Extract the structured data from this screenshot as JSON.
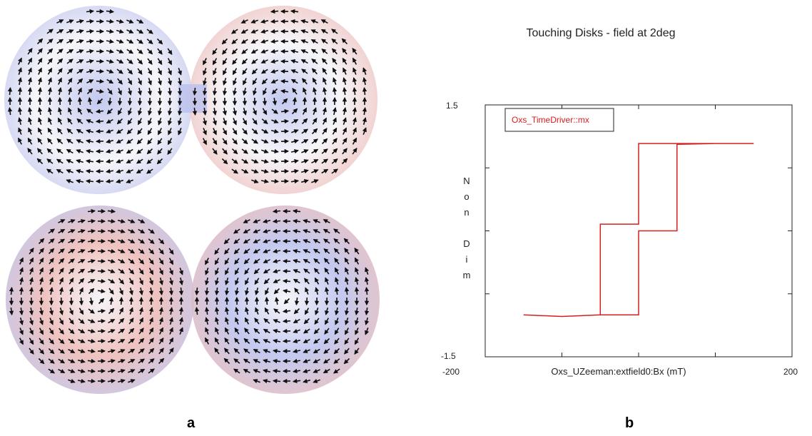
{
  "panels": {
    "a_label": "a",
    "b_label": "b"
  },
  "vector_field": {
    "description_colors": {
      "negative": "#b9c0ec",
      "positive": "#ecb8b4",
      "neutral": "#f4f4f8",
      "arrow": "#111111"
    },
    "disks": [
      {
        "id": "top-left",
        "pattern": "vortex-ccw"
      },
      {
        "id": "top-right",
        "pattern": "vortex-cw"
      },
      {
        "id": "bottom-left",
        "pattern": "onion-up"
      },
      {
        "id": "bottom-right",
        "pattern": "onion-down"
      }
    ]
  },
  "chart_data": {
    "type": "line",
    "title": "Touching Disks - field at 2deg",
    "xlabel": "Oxs_UZeeman:extfield0:Bx (mT)",
    "ylabel_chars": [
      "N",
      "o",
      "n",
      "",
      "D",
      "i",
      "m"
    ],
    "xlim": [
      -200,
      200
    ],
    "ylim": [
      -1.5,
      1.5
    ],
    "x_tick_labels": [
      "-200",
      "200"
    ],
    "y_tick_labels": [
      "1.5",
      "-1.5"
    ],
    "legend": "Oxs_TimeDriver::mx",
    "series_color": "#d42020",
    "series": [
      {
        "name": "Oxs_TimeDriver::mx",
        "points": [
          [
            -150,
            -1.0
          ],
          [
            -100,
            -1.02
          ],
          [
            -50,
            -1.0
          ],
          [
            -50,
            0.08
          ],
          [
            0,
            0.08
          ],
          [
            0,
            1.04
          ],
          [
            100,
            1.04
          ],
          [
            150,
            1.04
          ],
          [
            100,
            1.04
          ],
          [
            50,
            1.03
          ],
          [
            50,
            -0.0
          ],
          [
            0,
            0.0
          ],
          [
            0,
            -1.0
          ],
          [
            -50,
            -1.0
          ],
          [
            -100,
            -1.02
          ],
          [
            -150,
            -1.0
          ]
        ]
      }
    ]
  }
}
